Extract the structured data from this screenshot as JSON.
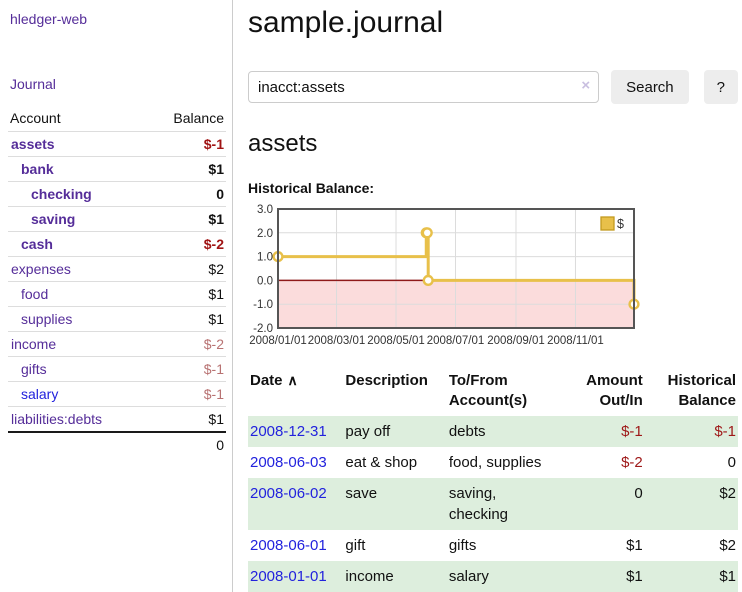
{
  "sidebar": {
    "brand": "hledger-web",
    "nav": {
      "journal": "Journal"
    },
    "accounts": {
      "header": {
        "account": "Account",
        "balance": "Balance"
      },
      "rows": [
        {
          "name": "assets",
          "balance": "$-1"
        },
        {
          "name": "bank",
          "balance": "$1"
        },
        {
          "name": "checking",
          "balance": "0"
        },
        {
          "name": "saving",
          "balance": "$1"
        },
        {
          "name": "cash",
          "balance": "$-2"
        },
        {
          "name": "expenses",
          "balance": "$2"
        },
        {
          "name": "food",
          "balance": "$1"
        },
        {
          "name": "supplies",
          "balance": "$1"
        },
        {
          "name": "income",
          "balance": "$-2"
        },
        {
          "name": "gifts",
          "balance": "$-1"
        },
        {
          "name": "salary",
          "balance": "$-1"
        },
        {
          "name": "liabilities:debts",
          "balance": "$1"
        }
      ],
      "total": "0"
    }
  },
  "main": {
    "title": "sample.journal",
    "search": {
      "value": "inacct:assets",
      "clear": "×",
      "search_button": "Search",
      "help_button": "?"
    },
    "heading": "assets",
    "chart_title": "Historical Balance:"
  },
  "register": {
    "headers": {
      "date": "Date",
      "sort_icon": "∧",
      "description": "Description",
      "accounts": "To/From Account(s)",
      "amount": "Amount Out/In",
      "balance": "Historical Balance"
    },
    "rows": [
      {
        "date": "2008-12-31",
        "description": "pay off",
        "accounts": "debts",
        "amount": "$-1",
        "balance": "$-1"
      },
      {
        "date": "2008-06-03",
        "description": "eat & shop",
        "accounts": "food, supplies",
        "amount": "$-2",
        "balance": "0"
      },
      {
        "date": "2008-06-02",
        "description": "save",
        "accounts": "saving, checking",
        "amount": "0",
        "balance": "$2"
      },
      {
        "date": "2008-06-01",
        "description": "gift",
        "accounts": "gifts",
        "amount": "$1",
        "balance": "$2"
      },
      {
        "date": "2008-01-01",
        "description": "income",
        "accounts": "salary",
        "amount": "$1",
        "balance": "$1"
      }
    ]
  },
  "chart_data": {
    "type": "line",
    "step": true,
    "title": "Historical Balance",
    "legend": [
      {
        "label": "$",
        "color": "#e8c04a"
      }
    ],
    "points": [
      {
        "date": "2008-01-01",
        "day": 0,
        "value": 1
      },
      {
        "date": "2008-06-01",
        "day": 152,
        "value": 2
      },
      {
        "date": "2008-06-02",
        "day": 153,
        "value": 2
      },
      {
        "date": "2008-06-03",
        "day": 154,
        "value": 0
      },
      {
        "date": "2008-12-31",
        "day": 365,
        "value": -1
      }
    ],
    "x_max": 365,
    "xticks": [
      {
        "day": 0,
        "label": "2008/01/01"
      },
      {
        "day": 60,
        "label": "2008/03/01"
      },
      {
        "day": 121,
        "label": "2008/05/01"
      },
      {
        "day": 182,
        "label": "2008/07/01"
      },
      {
        "day": 244,
        "label": "2008/09/01"
      },
      {
        "day": 305,
        "label": "2008/11/01"
      }
    ],
    "ylim": [
      -2,
      3
    ],
    "yticks": [
      3,
      2,
      1,
      0,
      -1,
      -2
    ],
    "grid": true,
    "legend_position": "top-right",
    "colors": {
      "line": "#e8c04a",
      "marker_fill": "#ffffff",
      "legend_border": "#c49a1f",
      "negative_region": "#fbdcdc",
      "zero_line": "#8f1a1a",
      "gridline": "#dcdcdc",
      "border": "#555555",
      "tick_text": "#333333"
    }
  }
}
